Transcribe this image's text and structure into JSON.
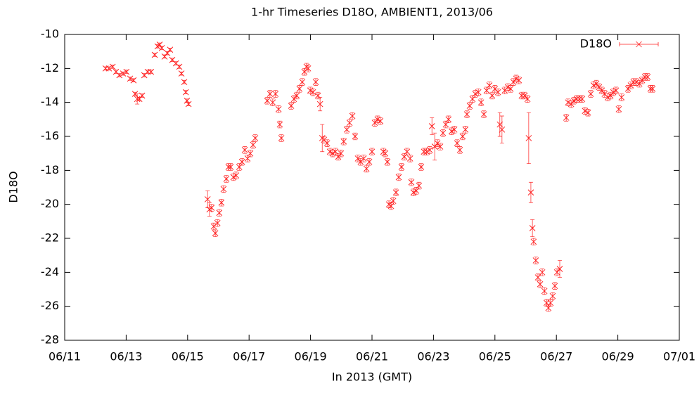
{
  "chart_data": {
    "type": "scatter",
    "title": "1-hr Timeseries D18O, AMBIENT1, 2013/06",
    "x_label": "In 2013 (GMT)",
    "y_label": "D18O",
    "xlim": [
      11,
      31
    ],
    "xticks": [
      {
        "value": 11,
        "label": "06/11"
      },
      {
        "value": 13,
        "label": "06/13"
      },
      {
        "value": 15,
        "label": "06/15"
      },
      {
        "value": 17,
        "label": "06/17"
      },
      {
        "value": 19,
        "label": "06/19"
      },
      {
        "value": 21,
        "label": "06/21"
      },
      {
        "value": 23,
        "label": "06/23"
      },
      {
        "value": 25,
        "label": "06/25"
      },
      {
        "value": 27,
        "label": "06/27"
      },
      {
        "value": 29,
        "label": "06/29"
      },
      {
        "value": 31,
        "label": "07/01"
      }
    ],
    "ylim": [
      -28,
      -10
    ],
    "yticks": [
      -28,
      -26,
      -24,
      -22,
      -20,
      -18,
      -16,
      -14,
      -12,
      -10
    ],
    "grid": false,
    "legend": "top-right",
    "series": [
      {
        "name": "D18O",
        "color": "#ff2020",
        "x": [
          12.33,
          12.44,
          12.56,
          12.67,
          12.78,
          12.9,
          13.01,
          13.13,
          13.24,
          13.29,
          13.36,
          13.43,
          13.52,
          13.59,
          13.7,
          13.81,
          13.93,
          14.02,
          14.09,
          14.16,
          14.25,
          14.34,
          14.43,
          14.5,
          14.62,
          14.73,
          14.8,
          14.89,
          14.94,
          14.98,
          15.03,
          15.65,
          15.71,
          15.78,
          15.85,
          15.9,
          15.97,
          16.03,
          16.1,
          16.17,
          16.26,
          16.33,
          16.4,
          16.49,
          16.58,
          16.68,
          16.77,
          16.86,
          16.95,
          17.04,
          17.13,
          17.2,
          17.59,
          17.68,
          17.77,
          17.86,
          17.96,
          18.0,
          18.05,
          18.37,
          18.46,
          18.55,
          18.64,
          18.73,
          18.8,
          18.87,
          18.92,
          18.99,
          19.08,
          19.17,
          19.24,
          19.31,
          19.38,
          19.44,
          19.54,
          19.63,
          19.72,
          19.81,
          19.9,
          19.99,
          20.08,
          20.18,
          20.27,
          20.36,
          20.45,
          20.54,
          20.63,
          20.73,
          20.82,
          20.91,
          21.0,
          21.09,
          21.18,
          21.27,
          21.37,
          21.43,
          21.5,
          21.55,
          21.62,
          21.69,
          21.78,
          21.87,
          21.96,
          22.05,
          22.14,
          22.24,
          22.28,
          22.35,
          22.44,
          22.53,
          22.6,
          22.69,
          22.78,
          22.88,
          22.95,
          23.04,
          23.13,
          23.22,
          23.31,
          23.4,
          23.49,
          23.59,
          23.68,
          23.77,
          23.86,
          23.95,
          24.04,
          24.09,
          24.18,
          24.27,
          24.36,
          24.46,
          24.55,
          24.64,
          24.73,
          24.82,
          24.91,
          25.0,
          25.1,
          25.16,
          25.23,
          25.32,
          25.42,
          25.51,
          25.6,
          25.69,
          25.78,
          25.87,
          25.97,
          26.06,
          26.1,
          26.17,
          26.22,
          26.26,
          26.33,
          26.4,
          26.47,
          26.54,
          26.61,
          26.68,
          26.74,
          26.81,
          26.88,
          26.95,
          27.02,
          27.11,
          27.32,
          27.38,
          27.48,
          27.57,
          27.66,
          27.75,
          27.84,
          27.93,
          28.03,
          28.12,
          28.21,
          28.3,
          28.39,
          28.48,
          28.57,
          28.67,
          28.76,
          28.85,
          28.94,
          29.03,
          29.12,
          29.33,
          29.42,
          29.51,
          29.6,
          29.7,
          29.79,
          29.88,
          29.97,
          30.06,
          30.13
        ],
        "values": [
          -12.0,
          -12.0,
          -11.9,
          -12.2,
          -12.4,
          -12.3,
          -12.2,
          -12.6,
          -12.7,
          -13.5,
          -13.8,
          -13.8,
          -13.6,
          -12.4,
          -12.2,
          -12.2,
          -11.2,
          -10.7,
          -10.6,
          -10.8,
          -11.3,
          -11.1,
          -10.9,
          -11.5,
          -11.7,
          -11.9,
          -12.3,
          -12.8,
          -13.4,
          -13.9,
          -14.1,
          -19.7,
          -20.3,
          -20.2,
          -21.3,
          -21.7,
          -21.1,
          -20.5,
          -19.9,
          -19.1,
          -18.5,
          -17.8,
          -17.8,
          -18.4,
          -18.3,
          -17.8,
          -17.5,
          -16.8,
          -17.3,
          -17.0,
          -16.5,
          -16.1,
          -13.9,
          -13.5,
          -14.0,
          -13.5,
          -14.4,
          -15.3,
          -16.1,
          -14.2,
          -13.8,
          -13.6,
          -13.2,
          -12.8,
          -12.2,
          -11.9,
          -12.0,
          -13.3,
          -13.4,
          -12.8,
          -13.6,
          -14.1,
          -16.1,
          -16.2,
          -16.4,
          -16.9,
          -17.0,
          -16.9,
          -17.2,
          -17.0,
          -16.3,
          -15.6,
          -15.2,
          -14.8,
          -16.0,
          -17.3,
          -17.5,
          -17.3,
          -17.9,
          -17.5,
          -16.9,
          -15.2,
          -15.0,
          -15.1,
          -16.9,
          -17.0,
          -17.5,
          -20.0,
          -20.1,
          -19.8,
          -19.3,
          -18.4,
          -17.8,
          -17.2,
          -16.9,
          -17.3,
          -18.7,
          -19.3,
          -19.2,
          -18.9,
          -17.8,
          -16.9,
          -16.9,
          -16.8,
          -15.4,
          -16.6,
          -16.4,
          -16.6,
          -15.8,
          -15.3,
          -15.0,
          -15.7,
          -15.6,
          -16.4,
          -16.8,
          -16.0,
          -15.6,
          -14.7,
          -14.2,
          -13.8,
          -13.5,
          -13.4,
          -14.0,
          -14.7,
          -13.3,
          -13.0,
          -13.6,
          -13.2,
          -13.4,
          -15.3,
          -15.6,
          -13.3,
          -13.1,
          -13.2,
          -12.8,
          -12.6,
          -12.7,
          -13.6,
          -13.6,
          -13.8,
          -16.1,
          -19.3,
          -21.4,
          -22.2,
          -23.3,
          -24.3,
          -24.7,
          -24.0,
          -25.1,
          -25.8,
          -26.1,
          -25.8,
          -25.4,
          -24.8,
          -24.0,
          -23.8,
          -14.9,
          -14.0,
          -14.1,
          -13.9,
          -13.8,
          -13.8,
          -13.8,
          -14.5,
          -14.6,
          -13.5,
          -13.0,
          -12.9,
          -13.1,
          -13.3,
          -13.5,
          -13.7,
          -13.6,
          -13.4,
          -13.3,
          -14.4,
          -13.7,
          -13.2,
          -13.0,
          -12.8,
          -12.8,
          -12.9,
          -12.7,
          -12.5,
          -12.5,
          -13.2,
          -13.2
        ],
        "errors": [
          0.1,
          0.1,
          0.1,
          0.1,
          0.1,
          0.1,
          0.1,
          0.1,
          0.1,
          0.1,
          0.3,
          0.1,
          0.1,
          0.1,
          0.1,
          0.1,
          0.1,
          0.1,
          0.1,
          0.1,
          0.1,
          0.1,
          0.1,
          0.1,
          0.1,
          0.1,
          0.1,
          0.1,
          0.1,
          0.1,
          0.1,
          0.5,
          0.4,
          0.2,
          0.2,
          0.2,
          0.2,
          0.2,
          0.2,
          0.2,
          0.2,
          0.2,
          0.2,
          0.2,
          0.2,
          0.2,
          0.2,
          0.2,
          0.2,
          0.2,
          0.2,
          0.2,
          0.2,
          0.2,
          0.2,
          0.2,
          0.2,
          0.2,
          0.2,
          0.2,
          0.2,
          0.2,
          0.2,
          0.2,
          0.2,
          0.2,
          0.2,
          0.2,
          0.2,
          0.2,
          0.2,
          0.4,
          0.8,
          0.2,
          0.2,
          0.2,
          0.2,
          0.2,
          0.2,
          0.2,
          0.2,
          0.2,
          0.2,
          0.2,
          0.2,
          0.2,
          0.2,
          0.2,
          0.2,
          0.2,
          0.2,
          0.2,
          0.2,
          0.2,
          0.2,
          0.2,
          0.2,
          0.2,
          0.2,
          0.2,
          0.2,
          0.2,
          0.2,
          0.2,
          0.2,
          0.2,
          0.2,
          0.2,
          0.2,
          0.2,
          0.2,
          0.2,
          0.2,
          0.2,
          0.5,
          0.8,
          0.2,
          0.2,
          0.2,
          0.2,
          0.2,
          0.2,
          0.2,
          0.2,
          0.2,
          0.2,
          0.2,
          0.2,
          0.2,
          0.2,
          0.2,
          0.2,
          0.2,
          0.2,
          0.2,
          0.2,
          0.2,
          0.2,
          0.2,
          0.7,
          0.8,
          0.2,
          0.2,
          0.2,
          0.2,
          0.2,
          0.2,
          0.2,
          0.2,
          0.2,
          1.5,
          0.6,
          0.5,
          0.2,
          0.2,
          0.2,
          0.2,
          0.2,
          0.2,
          0.2,
          0.2,
          0.2,
          0.2,
          0.2,
          0.2,
          0.5,
          0.2,
          0.2,
          0.2,
          0.2,
          0.2,
          0.2,
          0.2,
          0.2,
          0.2,
          0.2,
          0.2,
          0.2,
          0.2,
          0.2,
          0.2,
          0.2,
          0.2,
          0.2,
          0.2,
          0.2,
          0.2,
          0.2,
          0.2,
          0.2,
          0.2,
          0.2,
          0.2,
          0.2,
          0.2,
          0.2,
          0.2
        ]
      }
    ]
  }
}
